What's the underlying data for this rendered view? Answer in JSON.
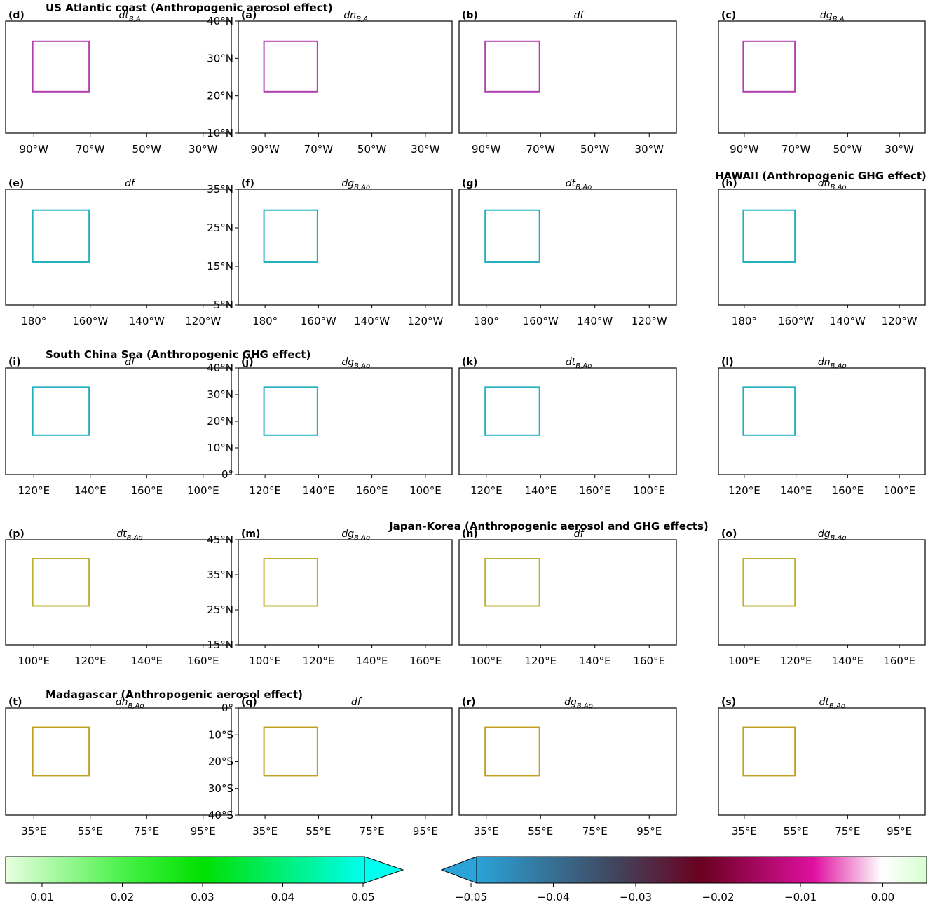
{
  "rows": [
    {
      "title": "US Atlantic coast (Anthropogenic aerosol effect)",
      "xticks": [
        "90°W",
        "70°W",
        "50°W",
        "30°W"
      ],
      "yticks": [
        "40°N",
        "30°N",
        "20°N",
        "10°N"
      ],
      "panels": [
        {
          "label": "(d)",
          "var": "dt",
          "sub": "B,A"
        },
        {
          "label": "(a)",
          "var": "dn",
          "sub": "B,A"
        },
        {
          "label": "(b)",
          "var": "df"
        },
        {
          "label": "(c)",
          "var": "dg",
          "sub": "B,A"
        }
      ]
    },
    {
      "title": "HAWAII (Anthropogenic GHG effect)",
      "xticks": [
        "180°",
        "160°W",
        "140°W",
        "120°W"
      ],
      "yticks": [
        "35°N",
        "25°N",
        "15°N",
        "5°N"
      ],
      "panels": [
        {
          "label": "(e)",
          "var": "df"
        },
        {
          "label": "(f)",
          "var": "dg",
          "sub": "B,Ao"
        },
        {
          "label": "(g)",
          "var": "dt",
          "sub": "B,Ao"
        },
        {
          "label": "(h)",
          "var": "dn",
          "sub": "B,Ao"
        }
      ]
    },
    {
      "title": "South China Sea (Anthropogenic GHG effect)",
      "xticks": [
        "120°E",
        "140°E",
        "160°E",
        "100°E"
      ],
      "yticks": [
        "40°N",
        "30°N",
        "20°N",
        "10°N",
        "0°"
      ],
      "panels": [
        {
          "label": "(i)",
          "var": "df"
        },
        {
          "label": "(j)",
          "var": "dg",
          "sub": "B,Ao"
        },
        {
          "label": "(k)",
          "var": "dt",
          "sub": "B,Ao"
        },
        {
          "label": "(l)",
          "var": "dn",
          "sub": "B,Ao"
        }
      ]
    },
    {
      "title": "Japan-Korea (Anthropogenic aerosol and GHG effects)",
      "xticks": [
        "100°E",
        "120°E",
        "140°E",
        "160°E"
      ],
      "yticks": [
        "45°N",
        "35°N",
        "25°N",
        "15°N"
      ],
      "panels": [
        {
          "label": "(p)",
          "var": "dt",
          "sub": "B,Ao"
        },
        {
          "label": "(m)",
          "var": "dg",
          "sub": "B,Ao"
        },
        {
          "label": "(n)",
          "var": "df"
        },
        {
          "label": "(o)",
          "var": "dg",
          "sub": "B,Ao"
        }
      ]
    },
    {
      "title": "Madagascar (Anthropogenic aerosol effect)",
      "xticks": [
        "35°E",
        "55°E",
        "75°E",
        "95°E"
      ],
      "yticks": [
        "0°",
        "10°S",
        "20°S",
        "30°S",
        "40°S"
      ],
      "panels": [
        {
          "label": "(t)",
          "var": "dn",
          "sub": "B,Ao"
        },
        {
          "label": "(q)",
          "var": "df"
        },
        {
          "label": "(r)",
          "var": "dg",
          "sub": "B,Ao"
        },
        {
          "label": "(s)",
          "var": "dt",
          "sub": "B,Ao"
        }
      ]
    }
  ],
  "colorbars": [
    {
      "ticks": [
        "0.01",
        "0.02",
        "0.03",
        "0.04",
        "0.05"
      ]
    },
    {
      "ticks": [
        "−0.05",
        "−0.04",
        "−0.03",
        "−0.02",
        "−0.01",
        "0.00"
      ]
    }
  ]
}
